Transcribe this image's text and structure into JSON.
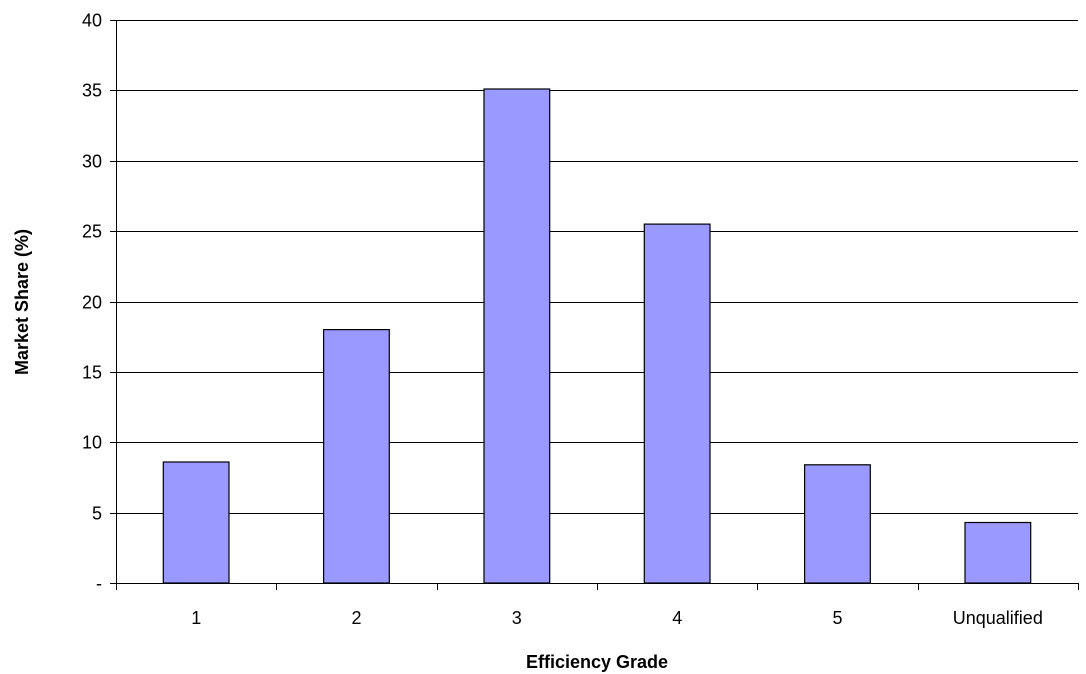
{
  "chart_data": {
    "type": "bar",
    "title": "",
    "xlabel": "Efficiency Grade",
    "ylabel": "Market Share (%)",
    "categories": [
      "1",
      "2",
      "3",
      "4",
      "5",
      "Unqualified"
    ],
    "values": [
      8.6,
      18.0,
      35.1,
      25.5,
      8.4,
      4.3
    ],
    "ylim": [
      0,
      40
    ],
    "yticks": [
      0,
      5,
      10,
      15,
      20,
      25,
      30,
      35,
      40
    ],
    "ytick_labels": [
      "-",
      "5",
      "10",
      "15",
      "20",
      "25",
      "30",
      "35",
      "40"
    ],
    "grid": true,
    "legend": "none",
    "colors": {
      "bar_fill": "#9999ff",
      "bar_stroke": "#000000",
      "grid": "#000000",
      "axis": "#000000",
      "background": "#ffffff"
    }
  }
}
